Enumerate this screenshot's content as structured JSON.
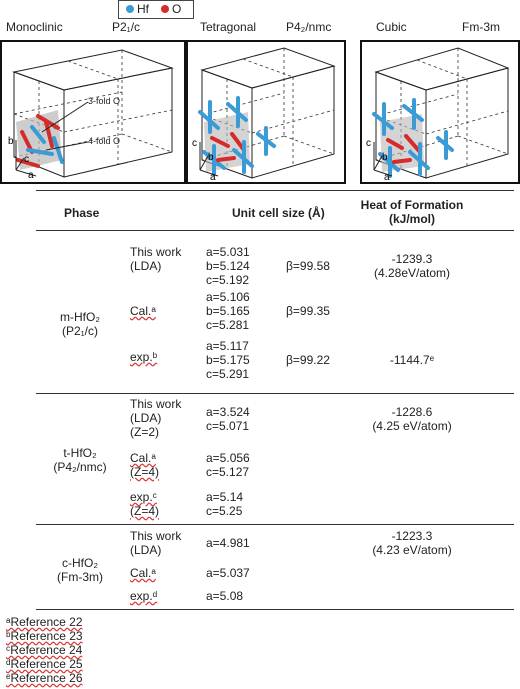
{
  "legend": {
    "hf_label": "Hf",
    "o_label": "O",
    "hf_color": "#3a9bd6",
    "o_color": "#d62b2b"
  },
  "structures": [
    {
      "name": "Monoclinic",
      "space_group": "P2₁/c",
      "annotations": [
        "3-fold O",
        "4-fold O"
      ],
      "axes": [
        "a",
        "b",
        "c"
      ]
    },
    {
      "name": "Tetragonal",
      "space_group": "P4₂/nmc",
      "axes": [
        "a",
        "b",
        "c"
      ]
    },
    {
      "name": "Cubic",
      "space_group": "Fm-3m",
      "axes": [
        "a",
        "b",
        "c"
      ]
    }
  ],
  "table": {
    "headers": {
      "phase": "Phase",
      "cell": "Unit cell size (Å)",
      "heat": "Heat of Formation\n(kJ/mol)"
    },
    "groups": [
      {
        "phase": "m-HfO₂\n(P2₁/c)",
        "rows": [
          {
            "method": "This work\n(LDA)",
            "cell": "a=5.031\nb=5.124\nc=5.192",
            "beta": "β=99.58",
            "heat": "-1239.3\n(4.28eV/atom)"
          },
          {
            "method": "Cal.ᵃ",
            "cell": "a=5.106\nb=5.165\nc=5.281",
            "beta": "β=99.35",
            "heat": ""
          },
          {
            "method": "exp.ᵇ",
            "cell": "a=5.117\nb=5.175\nc=5.291",
            "beta": "β=99.22",
            "heat": "-1144.7ᵉ"
          }
        ]
      },
      {
        "phase": "t-HfO₂\n(P4₂/nmc)",
        "rows": [
          {
            "method": "This work\n(LDA)\n(Z=2)",
            "cell": "a=3.524\nc=5.071",
            "beta": "",
            "heat": "-1228.6\n(4.25 eV/atom)"
          },
          {
            "method": "Cal.ᵃ\n(Z=4)",
            "cell": "a=5.056\nc=5.127",
            "beta": "",
            "heat": ""
          },
          {
            "method": "exp.ᶜ\n(Z=4)",
            "cell": "a=5.14\nc=5.25",
            "beta": "",
            "heat": ""
          }
        ]
      },
      {
        "phase": "c-HfO₂\n(Fm-3m)",
        "rows": [
          {
            "method": "This work\n(LDA)",
            "cell": "a=4.981",
            "beta": "",
            "heat": "-1223.3\n(4.23 eV/atom)"
          },
          {
            "method": "Cal.ᵃ",
            "cell": "a=5.037",
            "beta": "",
            "heat": ""
          },
          {
            "method": "exp.ᵈ",
            "cell": "a=5.08",
            "beta": "",
            "heat": ""
          }
        ]
      }
    ]
  },
  "references": [
    "ᵃReference 22",
    "ᵇReference 23",
    "ᶜReference 24",
    "ᵈReference 25",
    "ᵉReference 26"
  ]
}
